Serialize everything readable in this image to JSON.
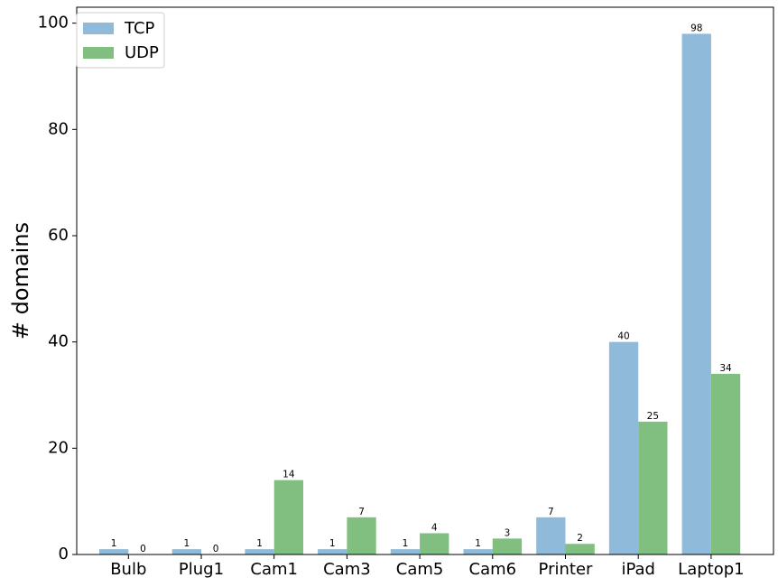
{
  "chart_data": {
    "type": "bar",
    "categories": [
      "Bulb",
      "Plug1",
      "Cam1",
      "Cam3",
      "Cam5",
      "Cam6",
      "Printer",
      "iPad",
      "Laptop1"
    ],
    "series": [
      {
        "name": "TCP",
        "values": [
          1,
          1,
          1,
          1,
          1,
          1,
          7,
          40,
          98
        ],
        "color": "#8fbad9"
      },
      {
        "name": "UDP",
        "values": [
          0,
          0,
          14,
          7,
          4,
          3,
          2,
          25,
          34
        ],
        "color": "#80bf80"
      }
    ],
    "title": "",
    "xlabel": "",
    "ylabel": "# domains",
    "ylim": [
      0,
      103
    ],
    "yticks": [
      0,
      20,
      40,
      60,
      80,
      100
    ],
    "grid": false,
    "legend_position": "top-left",
    "data_labels": true
  }
}
